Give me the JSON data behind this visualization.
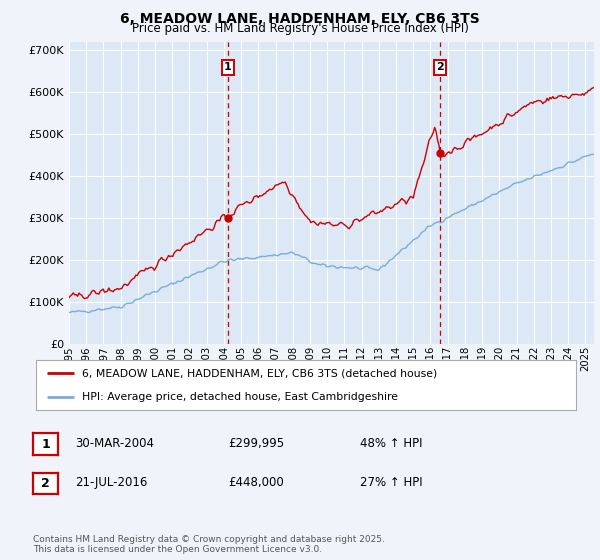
{
  "title": "6, MEADOW LANE, HADDENHAM, ELY, CB6 3TS",
  "subtitle": "Price paid vs. HM Land Registry's House Price Index (HPI)",
  "bg_color": "#f0f4fa",
  "plot_bg_color": "#dce8f5",
  "grid_color": "#ffffff",
  "red_line_color": "#cc0000",
  "blue_line_color": "#7aaed6",
  "marker1_x": 2004.24,
  "marker2_x": 2016.55,
  "xmin": 1995,
  "xmax": 2025.5,
  "ymin": 0,
  "ymax": 720000,
  "yticks": [
    0,
    100000,
    200000,
    300000,
    400000,
    500000,
    600000,
    700000
  ],
  "ytick_labels": [
    "£0",
    "£100K",
    "£200K",
    "£300K",
    "£400K",
    "£500K",
    "£600K",
    "£700K"
  ],
  "legend_line1": "6, MEADOW LANE, HADDENHAM, ELY, CB6 3TS (detached house)",
  "legend_line2": "HPI: Average price, detached house, East Cambridgeshire",
  "table_row1_num": "1",
  "table_row1_date": "30-MAR-2004",
  "table_row1_price": "£299,995",
  "table_row1_hpi": "48% ↑ HPI",
  "table_row2_num": "2",
  "table_row2_date": "21-JUL-2016",
  "table_row2_price": "£448,000",
  "table_row2_hpi": "27% ↑ HPI",
  "footer": "Contains HM Land Registry data © Crown copyright and database right 2025.\nThis data is licensed under the Open Government Licence v3.0.",
  "xticks": [
    1995,
    1996,
    1997,
    1998,
    1999,
    2000,
    2001,
    2002,
    2003,
    2004,
    2005,
    2006,
    2007,
    2008,
    2009,
    2010,
    2011,
    2012,
    2013,
    2014,
    2015,
    2016,
    2017,
    2018,
    2019,
    2020,
    2021,
    2022,
    2023,
    2024,
    2025
  ]
}
